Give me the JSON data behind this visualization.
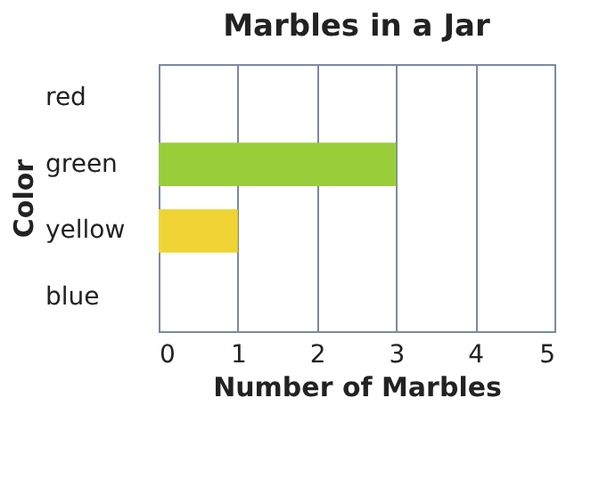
{
  "chart_data": {
    "type": "bar",
    "orientation": "horizontal",
    "title": "Marbles in a Jar",
    "xlabel": "Number of Marbles",
    "ylabel": "Color",
    "categories": [
      "red",
      "green",
      "yellow",
      "blue"
    ],
    "values": [
      0,
      3,
      1,
      0
    ],
    "colors": [
      "#e03030",
      "#9acd3a",
      "#f0d435",
      "#3060d0"
    ],
    "xlim": [
      0,
      5
    ],
    "xticks": [
      0,
      1,
      2,
      3,
      4,
      5
    ],
    "grid": "x"
  }
}
